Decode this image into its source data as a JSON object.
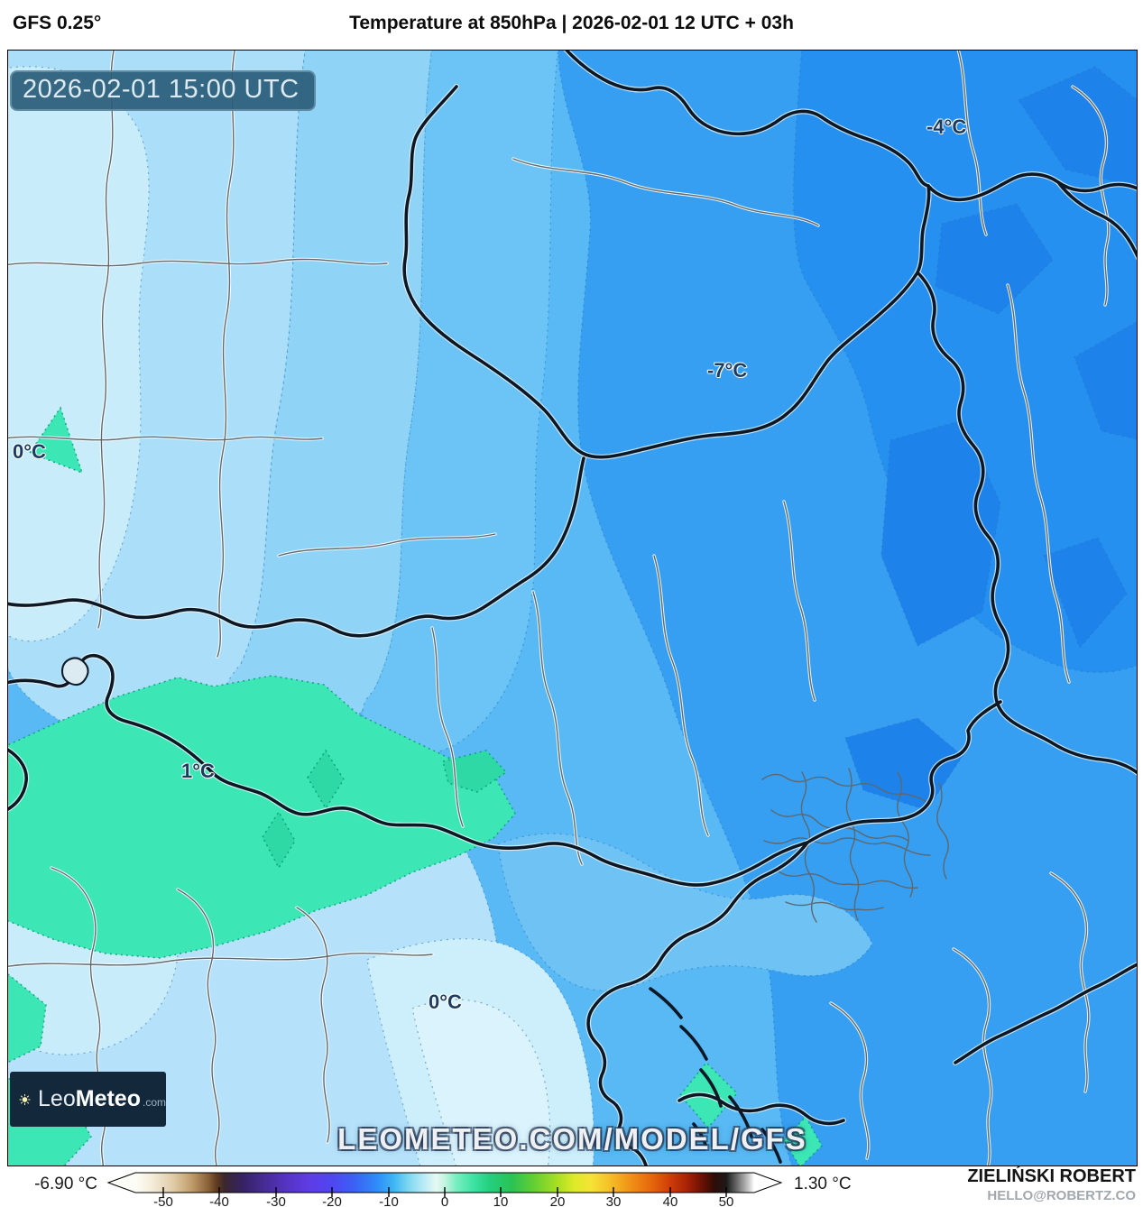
{
  "header": {
    "model_label": "GFS 0.25°",
    "title": "Temperature at 850hPa | 2026-02-01 12 UTC + 03h"
  },
  "map": {
    "timestamp": "2026-02-01 15:00 UTC",
    "watermark": "LEOMETEO.COM/MODEL/GFS",
    "temperature_labels": [
      {
        "text": "0°C"
      },
      {
        "text": "-4°C"
      },
      {
        "text": "-7°C"
      },
      {
        "text": "1°C"
      },
      {
        "text": "0°C"
      }
    ],
    "palette": {
      "light": "#aadef9",
      "pale": "#c9ecfb",
      "pale_lighter": "#daf3fd",
      "light_soft": "#b5e2fa",
      "medium": "#8fd4f7",
      "medium_deep": "#6cc3f5",
      "medium_soft": "#6fc2f4",
      "strong": "#58b9f4",
      "deep": "#369ff1",
      "deeper": "#2590ef",
      "deepest": "#1d83ea",
      "sea_pale": "#cdeffc",
      "teal": "#3ce7b5",
      "teal_dark": "#2ed9a6",
      "lake": "#dceaf2"
    }
  },
  "logo": {
    "brand_light": "Leo",
    "brand_bold": "Meteo",
    "brand_suffix": ".com"
  },
  "colorbar": {
    "min_label": "-6.90 °C",
    "max_label": "1.30 °C",
    "ticks": [
      "-50",
      "-40",
      "-30",
      "-20",
      "-10",
      "0",
      "10",
      "20",
      "30",
      "40",
      "50"
    ],
    "gradient": [
      [
        "0",
        "#fdfdf8"
      ],
      [
        "0.027",
        "#f4ecda"
      ],
      [
        "0.064",
        "#ddc8a2"
      ],
      [
        "0.091",
        "#bf9c6a"
      ],
      [
        "0.118",
        "#8a6138"
      ],
      [
        "0.132",
        "#5c3a1e"
      ],
      [
        "0.145",
        "#3a2630"
      ],
      [
        "0.173",
        "#352363"
      ],
      [
        "0.209",
        "#462c94"
      ],
      [
        "0.245",
        "#5634c4"
      ],
      [
        "0.282",
        "#5e3ce6"
      ],
      [
        "0.318",
        "#4f46f0"
      ],
      [
        "0.355",
        "#3a62f5"
      ],
      [
        "0.391",
        "#2f8df8"
      ],
      [
        "0.418",
        "#3fb6f2"
      ],
      [
        "0.441",
        "#7dd7f0"
      ],
      [
        "0.464",
        "#b5e9f6"
      ],
      [
        "0.486",
        "#e6f8f3"
      ],
      [
        "0.5",
        "#c3f4e0"
      ],
      [
        "0.518",
        "#7beec2"
      ],
      [
        "0.545",
        "#3fe3a4"
      ],
      [
        "0.573",
        "#23cf7e"
      ],
      [
        "0.609",
        "#2bc254"
      ],
      [
        "0.645",
        "#66cf31"
      ],
      [
        "0.682",
        "#a8df22"
      ],
      [
        "0.709",
        "#dcea28"
      ],
      [
        "0.736",
        "#f4e436"
      ],
      [
        "0.764",
        "#f5c229"
      ],
      [
        "0.8",
        "#f09216"
      ],
      [
        "0.836",
        "#e4640c"
      ],
      [
        "0.864",
        "#cf3d08"
      ],
      [
        "0.891",
        "#a82306"
      ],
      [
        "0.914",
        "#6f1203"
      ],
      [
        "0.936",
        "#2e0c06"
      ],
      [
        "0.955",
        "#1a1a1a"
      ],
      [
        "0.973",
        "#6e6e6e"
      ],
      [
        "0.991",
        "#c8c8c8"
      ],
      [
        "1",
        "#ffffff"
      ]
    ]
  },
  "credits": {
    "author": "ZIELIŃSKI ROBERT",
    "contact": "HELLO@ROBERTZ.CO"
  }
}
